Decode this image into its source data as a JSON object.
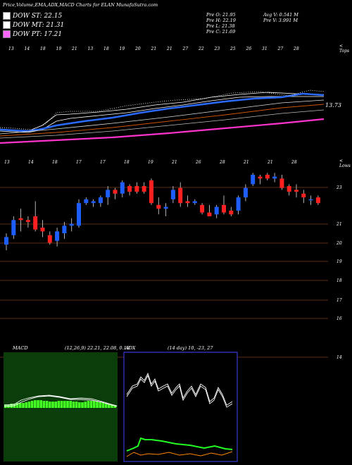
{
  "header": {
    "title": "Price,Volume,EMA,ADX,MACD Charts for ELAN  MunafaSutra.com",
    "legend": [
      {
        "label": "DOW ST: 22.15",
        "color": "#ffffff"
      },
      {
        "label": "DOW MT: 21.31",
        "color": "#ffffff"
      },
      {
        "label": "DOW PT: 17.21",
        "color": "#ff66ff"
      }
    ],
    "ohlc": {
      "open": "Pre   O: 21.95",
      "high": "Pre   H: 22.19",
      "low": "Pre   L: 21.38",
      "close": "Pre   C: 21.69",
      "avg_vol": "Avg V: 0.541 M",
      "pre_vol": "Pre   V: 3.991 M"
    }
  },
  "ema_panel": {
    "date_labels": [
      "13",
      "14",
      "18",
      "19",
      "21",
      "13",
      "18",
      "19",
      "20",
      "21",
      "21",
      "27",
      "22",
      "23",
      "25",
      "26",
      "31",
      "27",
      "28"
    ],
    "corner_label": "< Tops",
    "value_label": "13.73"
  },
  "price_panel": {
    "date_labels": [
      "13",
      "14",
      "18",
      "17",
      "17",
      "18",
      "19",
      "21",
      "26",
      "28",
      "21",
      "21",
      "28"
    ],
    "corner_label": "< Lows",
    "y_ticks": [
      "23",
      "21",
      "20",
      "19",
      "18",
      "17",
      "16",
      "14"
    ],
    "colors": {
      "up": "#1e5eff",
      "down": "#ff2020",
      "grid": "#7a3a1a"
    }
  },
  "chart_data": {
    "type": "candlestick",
    "ylim": [
      13.8,
      23.8
    ],
    "candles": [
      {
        "o": 19.8,
        "h": 20.4,
        "l": 19.5,
        "c": 20.2
      },
      {
        "o": 20.3,
        "h": 21.3,
        "l": 20.1,
        "c": 21.1
      },
      {
        "o": 21.2,
        "h": 21.7,
        "l": 20.5,
        "c": 21.1
      },
      {
        "o": 21.1,
        "h": 21.3,
        "l": 20.7,
        "c": 21.0
      },
      {
        "o": 21.3,
        "h": 22.1,
        "l": 20.5,
        "c": 20.6
      },
      {
        "o": 20.7,
        "h": 21.1,
        "l": 20.2,
        "c": 20.5
      },
      {
        "o": 20.3,
        "h": 20.5,
        "l": 19.8,
        "c": 19.9
      },
      {
        "o": 20.0,
        "h": 20.7,
        "l": 19.7,
        "c": 20.5
      },
      {
        "o": 20.4,
        "h": 21.0,
        "l": 20.1,
        "c": 20.8
      },
      {
        "o": 20.8,
        "h": 21.2,
        "l": 20.5,
        "c": 20.9
      },
      {
        "o": 20.8,
        "h": 22.2,
        "l": 20.7,
        "c": 22.0
      },
      {
        "o": 22.0,
        "h": 22.3,
        "l": 21.9,
        "c": 22.2
      },
      {
        "o": 22.0,
        "h": 22.2,
        "l": 21.8,
        "c": 22.1
      },
      {
        "o": 22.0,
        "h": 22.4,
        "l": 21.8,
        "c": 22.3
      },
      {
        "o": 22.3,
        "h": 22.9,
        "l": 21.9,
        "c": 22.7
      },
      {
        "o": 22.7,
        "h": 22.8,
        "l": 22.2,
        "c": 22.5
      },
      {
        "o": 22.5,
        "h": 23.2,
        "l": 22.3,
        "c": 23.1
      },
      {
        "o": 22.9,
        "h": 23.0,
        "l": 22.4,
        "c": 22.6
      },
      {
        "o": 22.9,
        "h": 23.1,
        "l": 22.5,
        "c": 22.6
      },
      {
        "o": 22.9,
        "h": 23.1,
        "l": 22.5,
        "c": 22.6
      },
      {
        "o": 23.2,
        "h": 23.3,
        "l": 21.9,
        "c": 22.0
      },
      {
        "o": 21.9,
        "h": 22.3,
        "l": 21.4,
        "c": 21.7
      },
      {
        "o": 21.7,
        "h": 22.0,
        "l": 21.3,
        "c": 21.8
      },
      {
        "o": 22.2,
        "h": 22.9,
        "l": 22.0,
        "c": 22.7
      },
      {
        "o": 22.8,
        "h": 23.1,
        "l": 21.8,
        "c": 22.0
      },
      {
        "o": 22.1,
        "h": 22.4,
        "l": 21.8,
        "c": 22.0
      },
      {
        "o": 22.0,
        "h": 22.2,
        "l": 21.9,
        "c": 22.1
      },
      {
        "o": 21.9,
        "h": 22.0,
        "l": 21.4,
        "c": 21.5
      },
      {
        "o": 21.5,
        "h": 21.9,
        "l": 21.3,
        "c": 21.3
      },
      {
        "o": 21.4,
        "h": 21.9,
        "l": 21.2,
        "c": 21.8
      },
      {
        "o": 21.9,
        "h": 22.4,
        "l": 21.4,
        "c": 21.5
      },
      {
        "o": 21.6,
        "h": 21.8,
        "l": 21.3,
        "c": 21.4
      },
      {
        "o": 21.6,
        "h": 22.4,
        "l": 21.4,
        "c": 22.3
      },
      {
        "o": 22.3,
        "h": 23.0,
        "l": 22.1,
        "c": 22.8
      },
      {
        "o": 23.0,
        "h": 23.6,
        "l": 22.9,
        "c": 23.5
      },
      {
        "o": 23.4,
        "h": 23.5,
        "l": 23.0,
        "c": 23.3
      },
      {
        "o": 23.5,
        "h": 23.6,
        "l": 23.2,
        "c": 23.3
      },
      {
        "o": 23.3,
        "h": 23.6,
        "l": 23.1,
        "c": 23.4
      },
      {
        "o": 23.3,
        "h": 23.5,
        "l": 22.7,
        "c": 22.8
      },
      {
        "o": 22.9,
        "h": 23.0,
        "l": 22.4,
        "c": 22.6
      },
      {
        "o": 22.7,
        "h": 23.0,
        "l": 22.3,
        "c": 22.6
      },
      {
        "o": 22.5,
        "h": 22.7,
        "l": 22.0,
        "c": 22.3
      },
      {
        "o": 22.2,
        "h": 22.4,
        "l": 21.9,
        "c": 22.2
      },
      {
        "o": 22.3,
        "h": 22.4,
        "l": 21.9,
        "c": 22.0
      }
    ]
  },
  "macd_panel": {
    "title": "MACD",
    "params": "(12,26,9) 22.21, 22.08, 0.18",
    "colors": {
      "bg": "#0a3d0a",
      "hist": "#44ff22",
      "line": "#ffffff"
    }
  },
  "adx_panel": {
    "title": "ADX",
    "params": "(14 day) 10, -23, 27",
    "colors": {
      "bg": "#000000",
      "border": "#4444ff",
      "plus": "#22ff22",
      "minus": "#ff8800",
      "adx": "#ffffff"
    }
  }
}
